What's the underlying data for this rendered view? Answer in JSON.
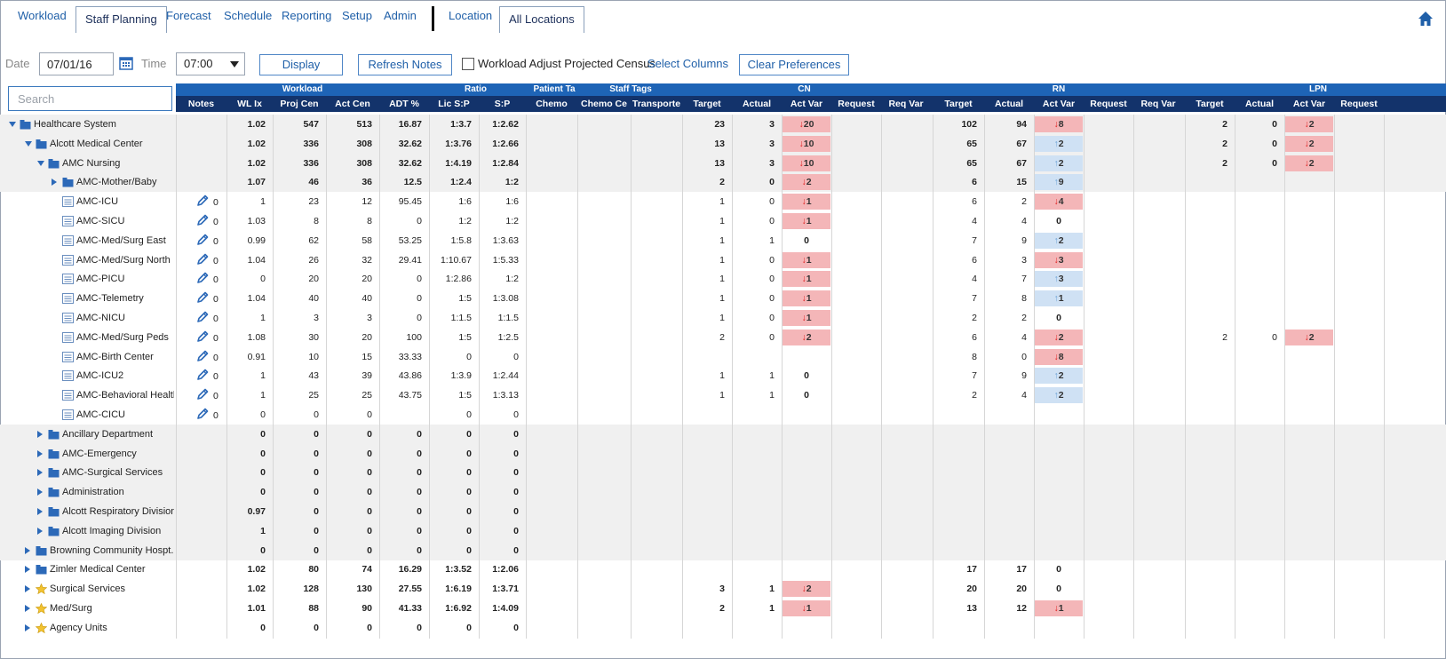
{
  "tabs": [
    {
      "label": "Workload",
      "active": false
    },
    {
      "label": "Staff Planning",
      "active": true
    },
    {
      "label": "Forecast",
      "active": false
    },
    {
      "label": "Schedule",
      "active": false
    },
    {
      "label": "Reporting",
      "active": false
    },
    {
      "label": "Setup",
      "active": false
    },
    {
      "label": "Admin",
      "active": false
    }
  ],
  "location_tabs": [
    {
      "label": "Location",
      "active": false
    },
    {
      "label": "All Locations",
      "active": true
    }
  ],
  "toolbar": {
    "date_label": "Date",
    "date_value": "07/01/16",
    "time_label": "Time",
    "time_value": "07:00",
    "display_button": "Display",
    "refresh_notes_button": "Refresh Notes",
    "workload_adjust_label": "Workload Adjust Projected Census",
    "select_columns_link": "Select Columns",
    "clear_preferences_button": "Clear Preferences"
  },
  "search": {
    "placeholder": "Search"
  },
  "header_groups": {
    "workload": "Workload",
    "ratio": "Ratio",
    "patient_tags": "Patient Ta",
    "staff_tags": "Staff Tags",
    "cn": "CN",
    "rn": "RN",
    "lpn": "LPN"
  },
  "columns": {
    "notes": "Notes",
    "wl_ix": "WL Ix",
    "proj_cen": "Proj Cen",
    "act_cen": "Act Cen",
    "adt": "ADT %",
    "lic_sp": "Lic S:P",
    "sp": "S:P",
    "chemo": "Chemo",
    "chemo_ce": "Chemo Ce",
    "transporte": "Transporte",
    "cn_target": "Target",
    "cn_actual": "Actual",
    "cn_act_var": "Act Var",
    "cn_request": "Request",
    "cn_req_var": "Req Var",
    "rn_target": "Target",
    "rn_actual": "Actual",
    "rn_act_var": "Act Var",
    "rn_request": "Request",
    "rn_req_var": "Req Var",
    "lpn_target": "Target",
    "lpn_actual": "Actual",
    "lpn_act_var": "Act Var",
    "lpn_request": "Request"
  },
  "rows": [
    {
      "name": "Healthcare System",
      "level": 0,
      "expand": "open",
      "icon": "building-icon",
      "bold": true,
      "grey": true,
      "notes": "",
      "wl": "1.02",
      "proj": "547",
      "act": "513",
      "adt": "16.87",
      "lic": "1:3.7",
      "sp": "1:2.62",
      "cn_t": "23",
      "cn_a": "3",
      "cn_v": "20",
      "cn_d": "down",
      "rn_t": "102",
      "rn_a": "94",
      "rn_v": "8",
      "rn_d": "down",
      "lpn_t": "2",
      "lpn_a": "0",
      "lpn_v": "2",
      "lpn_d": "down"
    },
    {
      "name": "Alcott Medical Center",
      "level": 1,
      "expand": "open",
      "icon": "building-icon",
      "bold": true,
      "grey": true,
      "notes": "",
      "wl": "1.02",
      "proj": "336",
      "act": "308",
      "adt": "32.62",
      "lic": "1:3.76",
      "sp": "1:2.66",
      "cn_t": "13",
      "cn_a": "3",
      "cn_v": "10",
      "cn_d": "down",
      "rn_t": "65",
      "rn_a": "67",
      "rn_v": "2",
      "rn_d": "up",
      "lpn_t": "2",
      "lpn_a": "0",
      "lpn_v": "2",
      "lpn_d": "down"
    },
    {
      "name": "AMC Nursing",
      "level": 2,
      "expand": "open",
      "icon": "building-icon",
      "bold": true,
      "grey": true,
      "notes": "",
      "wl": "1.02",
      "proj": "336",
      "act": "308",
      "adt": "32.62",
      "lic": "1:4.19",
      "sp": "1:2.84",
      "cn_t": "13",
      "cn_a": "3",
      "cn_v": "10",
      "cn_d": "down",
      "rn_t": "65",
      "rn_a": "67",
      "rn_v": "2",
      "rn_d": "up",
      "lpn_t": "2",
      "lpn_a": "0",
      "lpn_v": "2",
      "lpn_d": "down"
    },
    {
      "name": "AMC-Mother/Baby",
      "level": 3,
      "expand": "closed",
      "icon": "building-icon",
      "bold": true,
      "grey": true,
      "notes": "",
      "wl": "1.07",
      "proj": "46",
      "act": "36",
      "adt": "12.5",
      "lic": "1:2.4",
      "sp": "1:2",
      "cn_t": "2",
      "cn_a": "0",
      "cn_v": "2",
      "cn_d": "down",
      "rn_t": "6",
      "rn_a": "15",
      "rn_v": "9",
      "rn_d": "up",
      "lpn_t": "",
      "lpn_a": "",
      "lpn_v": "",
      "lpn_d": ""
    },
    {
      "name": "AMC-ICU",
      "level": 4,
      "expand": "none",
      "icon": "unit-icon",
      "bold": false,
      "grey": false,
      "notes": "0",
      "wl": "1",
      "proj": "23",
      "act": "12",
      "adt": "95.45",
      "lic": "1:6",
      "sp": "1:6",
      "cn_t": "1",
      "cn_a": "0",
      "cn_v": "1",
      "cn_d": "down",
      "rn_t": "6",
      "rn_a": "2",
      "rn_v": "4",
      "rn_d": "down",
      "lpn_t": "",
      "lpn_a": "",
      "lpn_v": "",
      "lpn_d": ""
    },
    {
      "name": "AMC-SICU",
      "level": 4,
      "expand": "none",
      "icon": "unit-icon",
      "bold": false,
      "grey": false,
      "notes": "0",
      "wl": "1.03",
      "proj": "8",
      "act": "8",
      "adt": "0",
      "lic": "1:2",
      "sp": "1:2",
      "cn_t": "1",
      "cn_a": "0",
      "cn_v": "1",
      "cn_d": "down",
      "rn_t": "4",
      "rn_a": "4",
      "rn_v": "0",
      "rn_d": "zero",
      "lpn_t": "",
      "lpn_a": "",
      "lpn_v": "",
      "lpn_d": ""
    },
    {
      "name": "AMC-Med/Surg East",
      "level": 4,
      "expand": "none",
      "icon": "unit-icon",
      "bold": false,
      "grey": false,
      "notes": "0",
      "wl": "0.99",
      "proj": "62",
      "act": "58",
      "adt": "53.25",
      "lic": "1:5.8",
      "sp": "1:3.63",
      "cn_t": "1",
      "cn_a": "1",
      "cn_v": "0",
      "cn_d": "zero",
      "rn_t": "7",
      "rn_a": "9",
      "rn_v": "2",
      "rn_d": "up",
      "lpn_t": "",
      "lpn_a": "",
      "lpn_v": "",
      "lpn_d": ""
    },
    {
      "name": "AMC-Med/Surg North",
      "level": 4,
      "expand": "none",
      "icon": "unit-icon",
      "bold": false,
      "grey": false,
      "notes": "0",
      "wl": "1.04",
      "proj": "26",
      "act": "32",
      "adt": "29.41",
      "lic": "1:10.67",
      "sp": "1:5.33",
      "cn_t": "1",
      "cn_a": "0",
      "cn_v": "1",
      "cn_d": "down",
      "rn_t": "6",
      "rn_a": "3",
      "rn_v": "3",
      "rn_d": "down",
      "lpn_t": "",
      "lpn_a": "",
      "lpn_v": "",
      "lpn_d": ""
    },
    {
      "name": "AMC-PICU",
      "level": 4,
      "expand": "none",
      "icon": "unit-icon",
      "bold": false,
      "grey": false,
      "notes": "0",
      "wl": "0",
      "proj": "20",
      "act": "20",
      "adt": "0",
      "lic": "1:2.86",
      "sp": "1:2",
      "cn_t": "1",
      "cn_a": "0",
      "cn_v": "1",
      "cn_d": "down",
      "rn_t": "4",
      "rn_a": "7",
      "rn_v": "3",
      "rn_d": "up",
      "lpn_t": "",
      "lpn_a": "",
      "lpn_v": "",
      "lpn_d": ""
    },
    {
      "name": "AMC-Telemetry",
      "level": 4,
      "expand": "none",
      "icon": "unit-icon",
      "bold": false,
      "grey": false,
      "notes": "0",
      "wl": "1.04",
      "proj": "40",
      "act": "40",
      "adt": "0",
      "lic": "1:5",
      "sp": "1:3.08",
      "cn_t": "1",
      "cn_a": "0",
      "cn_v": "1",
      "cn_d": "down",
      "rn_t": "7",
      "rn_a": "8",
      "rn_v": "1",
      "rn_d": "up",
      "lpn_t": "",
      "lpn_a": "",
      "lpn_v": "",
      "lpn_d": ""
    },
    {
      "name": "AMC-NICU",
      "level": 4,
      "expand": "none",
      "icon": "unit-icon",
      "bold": false,
      "grey": false,
      "notes": "0",
      "wl": "1",
      "proj": "3",
      "act": "3",
      "adt": "0",
      "lic": "1:1.5",
      "sp": "1:1.5",
      "cn_t": "1",
      "cn_a": "0",
      "cn_v": "1",
      "cn_d": "down",
      "rn_t": "2",
      "rn_a": "2",
      "rn_v": "0",
      "rn_d": "zero",
      "lpn_t": "",
      "lpn_a": "",
      "lpn_v": "",
      "lpn_d": ""
    },
    {
      "name": "AMC-Med/Surg Peds",
      "level": 4,
      "expand": "none",
      "icon": "unit-icon",
      "bold": false,
      "grey": false,
      "notes": "0",
      "wl": "1.08",
      "proj": "30",
      "act": "20",
      "adt": "100",
      "lic": "1:5",
      "sp": "1:2.5",
      "cn_t": "2",
      "cn_a": "0",
      "cn_v": "2",
      "cn_d": "down",
      "rn_t": "6",
      "rn_a": "4",
      "rn_v": "2",
      "rn_d": "down",
      "lpn_t": "2",
      "lpn_a": "0",
      "lpn_v": "2",
      "lpn_d": "down"
    },
    {
      "name": "AMC-Birth Center",
      "level": 4,
      "expand": "none",
      "icon": "unit-icon",
      "bold": false,
      "grey": false,
      "notes": "0",
      "wl": "0.91",
      "proj": "10",
      "act": "15",
      "adt": "33.33",
      "lic": "0",
      "sp": "0",
      "cn_t": "",
      "cn_a": "",
      "cn_v": "",
      "cn_d": "",
      "rn_t": "8",
      "rn_a": "0",
      "rn_v": "8",
      "rn_d": "down",
      "lpn_t": "",
      "lpn_a": "",
      "lpn_v": "",
      "lpn_d": ""
    },
    {
      "name": "AMC-ICU2",
      "level": 4,
      "expand": "none",
      "icon": "unit-icon",
      "bold": false,
      "grey": false,
      "notes": "0",
      "wl": "1",
      "proj": "43",
      "act": "39",
      "adt": "43.86",
      "lic": "1:3.9",
      "sp": "1:2.44",
      "cn_t": "1",
      "cn_a": "1",
      "cn_v": "0",
      "cn_d": "zero",
      "rn_t": "7",
      "rn_a": "9",
      "rn_v": "2",
      "rn_d": "up",
      "lpn_t": "",
      "lpn_a": "",
      "lpn_v": "",
      "lpn_d": ""
    },
    {
      "name": "AMC-Behavioral Health",
      "level": 4,
      "expand": "none",
      "icon": "unit-icon",
      "bold": false,
      "grey": false,
      "notes": "0",
      "wl": "1",
      "proj": "25",
      "act": "25",
      "adt": "43.75",
      "lic": "1:5",
      "sp": "1:3.13",
      "cn_t": "1",
      "cn_a": "1",
      "cn_v": "0",
      "cn_d": "zero",
      "rn_t": "2",
      "rn_a": "4",
      "rn_v": "2",
      "rn_d": "up",
      "lpn_t": "",
      "lpn_a": "",
      "lpn_v": "",
      "lpn_d": ""
    },
    {
      "name": "AMC-CICU",
      "level": 4,
      "expand": "none",
      "icon": "unit-icon",
      "bold": false,
      "grey": false,
      "notes": "0",
      "wl": "0",
      "proj": "0",
      "act": "0",
      "adt": "",
      "lic": "0",
      "sp": "0",
      "cn_t": "",
      "cn_a": "",
      "cn_v": "",
      "cn_d": "",
      "rn_t": "",
      "rn_a": "",
      "rn_v": "",
      "rn_d": "",
      "lpn_t": "",
      "lpn_a": "",
      "lpn_v": "",
      "lpn_d": ""
    },
    {
      "name": "Ancillary Department",
      "level": 2,
      "expand": "closed",
      "icon": "building-icon",
      "bold": true,
      "grey": true,
      "notes": "",
      "wl": "0",
      "proj": "0",
      "act": "0",
      "adt": "0",
      "lic": "0",
      "sp": "0",
      "cn_t": "",
      "cn_a": "",
      "cn_v": "",
      "cn_d": "",
      "rn_t": "",
      "rn_a": "",
      "rn_v": "",
      "rn_d": "",
      "lpn_t": "",
      "lpn_a": "",
      "lpn_v": "",
      "lpn_d": ""
    },
    {
      "name": "AMC-Emergency",
      "level": 2,
      "expand": "closed",
      "icon": "building-icon",
      "bold": true,
      "grey": true,
      "notes": "",
      "wl": "0",
      "proj": "0",
      "act": "0",
      "adt": "0",
      "lic": "0",
      "sp": "0",
      "cn_t": "",
      "cn_a": "",
      "cn_v": "",
      "cn_d": "",
      "rn_t": "",
      "rn_a": "",
      "rn_v": "",
      "rn_d": "",
      "lpn_t": "",
      "lpn_a": "",
      "lpn_v": "",
      "lpn_d": ""
    },
    {
      "name": "AMC-Surgical Services",
      "level": 2,
      "expand": "closed",
      "icon": "building-icon",
      "bold": true,
      "grey": true,
      "notes": "",
      "wl": "0",
      "proj": "0",
      "act": "0",
      "adt": "0",
      "lic": "0",
      "sp": "0",
      "cn_t": "",
      "cn_a": "",
      "cn_v": "",
      "cn_d": "",
      "rn_t": "",
      "rn_a": "",
      "rn_v": "",
      "rn_d": "",
      "lpn_t": "",
      "lpn_a": "",
      "lpn_v": "",
      "lpn_d": ""
    },
    {
      "name": "Administration",
      "level": 2,
      "expand": "closed",
      "icon": "building-icon",
      "bold": true,
      "grey": true,
      "notes": "",
      "wl": "0",
      "proj": "0",
      "act": "0",
      "adt": "0",
      "lic": "0",
      "sp": "0",
      "cn_t": "",
      "cn_a": "",
      "cn_v": "",
      "cn_d": "",
      "rn_t": "",
      "rn_a": "",
      "rn_v": "",
      "rn_d": "",
      "lpn_t": "",
      "lpn_a": "",
      "lpn_v": "",
      "lpn_d": ""
    },
    {
      "name": "Alcott Respiratory Division",
      "level": 2,
      "expand": "closed",
      "icon": "building-icon",
      "bold": true,
      "grey": true,
      "notes": "",
      "wl": "0.97",
      "proj": "0",
      "act": "0",
      "adt": "0",
      "lic": "0",
      "sp": "0",
      "cn_t": "",
      "cn_a": "",
      "cn_v": "",
      "cn_d": "",
      "rn_t": "",
      "rn_a": "",
      "rn_v": "",
      "rn_d": "",
      "lpn_t": "",
      "lpn_a": "",
      "lpn_v": "",
      "lpn_d": ""
    },
    {
      "name": "Alcott Imaging Division",
      "level": 2,
      "expand": "closed",
      "icon": "building-icon",
      "bold": true,
      "grey": true,
      "notes": "",
      "wl": "1",
      "proj": "0",
      "act": "0",
      "adt": "0",
      "lic": "0",
      "sp": "0",
      "cn_t": "",
      "cn_a": "",
      "cn_v": "",
      "cn_d": "",
      "rn_t": "",
      "rn_a": "",
      "rn_v": "",
      "rn_d": "",
      "lpn_t": "",
      "lpn_a": "",
      "lpn_v": "",
      "lpn_d": ""
    },
    {
      "name": "Browning Community Hospt...",
      "level": 1,
      "expand": "closed",
      "icon": "building-icon",
      "bold": true,
      "grey": true,
      "notes": "",
      "wl": "0",
      "proj": "0",
      "act": "0",
      "adt": "0",
      "lic": "0",
      "sp": "0",
      "cn_t": "",
      "cn_a": "",
      "cn_v": "",
      "cn_d": "",
      "rn_t": "",
      "rn_a": "",
      "rn_v": "",
      "rn_d": "",
      "lpn_t": "",
      "lpn_a": "",
      "lpn_v": "",
      "lpn_d": ""
    },
    {
      "name": "Zimler Medical Center",
      "level": 1,
      "expand": "closed",
      "icon": "building-icon",
      "bold": true,
      "grey": false,
      "notes": "",
      "wl": "1.02",
      "proj": "80",
      "act": "74",
      "adt": "16.29",
      "lic": "1:3.52",
      "sp": "1:2.06",
      "cn_t": "",
      "cn_a": "",
      "cn_v": "",
      "cn_d": "",
      "rn_t": "17",
      "rn_a": "17",
      "rn_v": "0",
      "rn_d": "zero",
      "lpn_t": "",
      "lpn_a": "",
      "lpn_v": "",
      "lpn_d": ""
    },
    {
      "name": "Surgical Services",
      "level": 1,
      "expand": "closed",
      "icon": "star-icon",
      "bold": true,
      "grey": false,
      "notes": "",
      "wl": "1.02",
      "proj": "128",
      "act": "130",
      "adt": "27.55",
      "lic": "1:6.19",
      "sp": "1:3.71",
      "cn_t": "3",
      "cn_a": "1",
      "cn_v": "2",
      "cn_d": "down",
      "rn_t": "20",
      "rn_a": "20",
      "rn_v": "0",
      "rn_d": "zero",
      "lpn_t": "",
      "lpn_a": "",
      "lpn_v": "",
      "lpn_d": ""
    },
    {
      "name": "Med/Surg",
      "level": 1,
      "expand": "closed",
      "icon": "star-icon",
      "bold": true,
      "grey": false,
      "notes": "",
      "wl": "1.01",
      "proj": "88",
      "act": "90",
      "adt": "41.33",
      "lic": "1:6.92",
      "sp": "1:4.09",
      "cn_t": "2",
      "cn_a": "1",
      "cn_v": "1",
      "cn_d": "down",
      "rn_t": "13",
      "rn_a": "12",
      "rn_v": "1",
      "rn_d": "down",
      "lpn_t": "",
      "lpn_a": "",
      "lpn_v": "",
      "lpn_d": ""
    },
    {
      "name": "Agency Units",
      "level": 1,
      "expand": "closed",
      "icon": "star-icon",
      "bold": true,
      "grey": false,
      "notes": "",
      "wl": "0",
      "proj": "0",
      "act": "0",
      "adt": "0",
      "lic": "0",
      "sp": "0",
      "cn_t": "",
      "cn_a": "",
      "cn_v": "",
      "cn_d": "",
      "rn_t": "",
      "rn_a": "",
      "rn_v": "",
      "rn_d": "",
      "lpn_t": "",
      "lpn_a": "",
      "lpn_v": "",
      "lpn_d": ""
    }
  ],
  "colors": {
    "header_light": "#1e64b6",
    "header_dark": "#13336b",
    "link": "#1f5fa8",
    "var_down_bg": "#f4b6b8",
    "var_up_bg": "#cfe1f4",
    "arrow_down": "#e02020",
    "arrow_up": "#6aa1d6"
  }
}
